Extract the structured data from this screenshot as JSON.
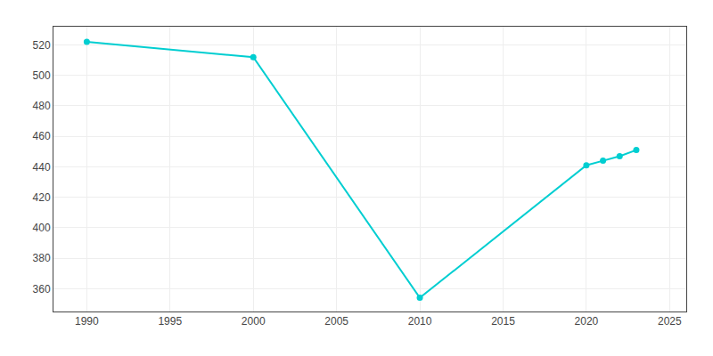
{
  "chart_data": {
    "type": "line",
    "x": [
      1990,
      2000,
      2010,
      2020,
      2021,
      2022,
      2023
    ],
    "values": [
      522,
      512,
      354,
      441,
      444,
      447,
      451
    ],
    "color": "#00CED1",
    "marker": "circle",
    "xlim": [
      1988,
      2026
    ],
    "ylim": [
      345,
      532
    ],
    "xticks": [
      1990,
      1995,
      2000,
      2005,
      2010,
      2015,
      2020,
      2025
    ],
    "yticks": [
      360,
      380,
      400,
      420,
      440,
      460,
      480,
      500,
      520
    ],
    "grid": true
  }
}
